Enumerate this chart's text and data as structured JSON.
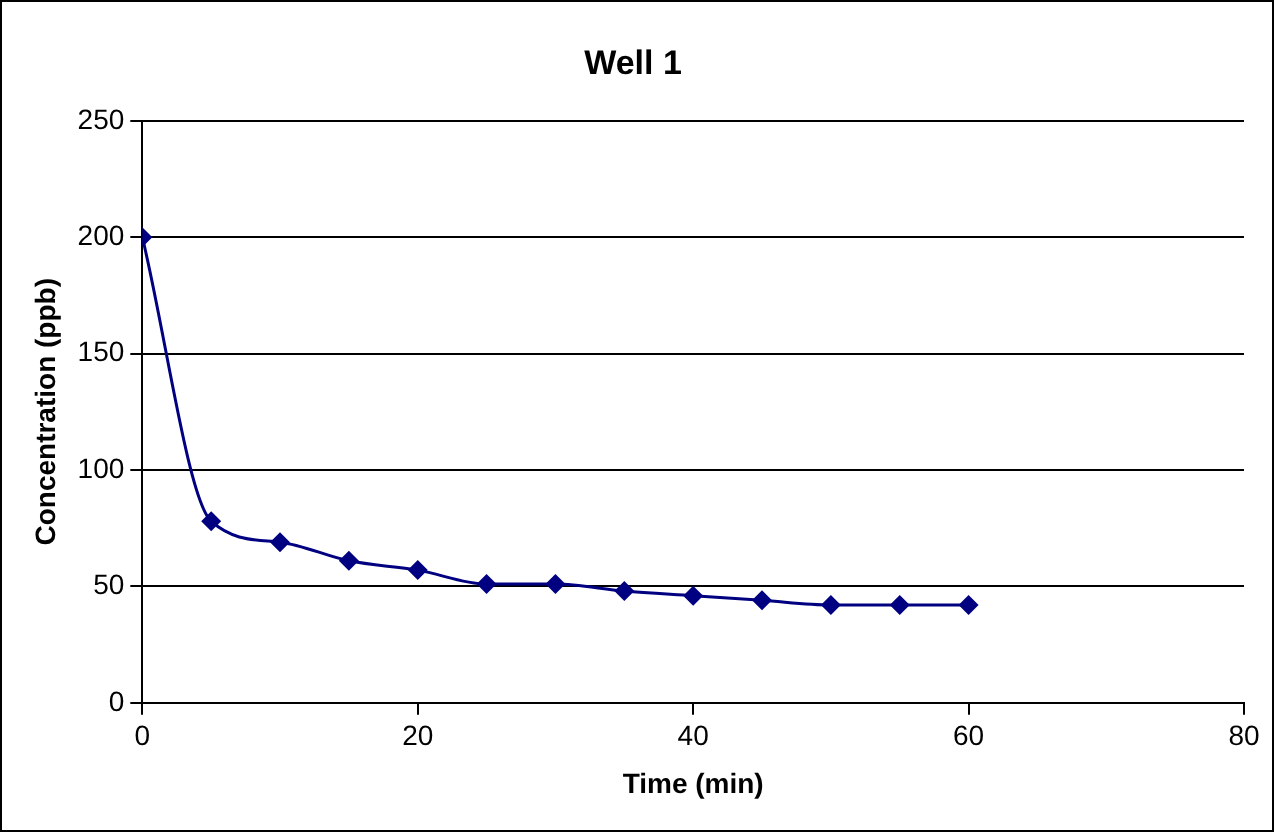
{
  "chart_data": {
    "type": "line",
    "title": "Well 1",
    "xlabel": "Time (min)",
    "ylabel": "Concentration (ppb)",
    "x": [
      0,
      5,
      10,
      15,
      20,
      25,
      30,
      35,
      40,
      45,
      50,
      55,
      60
    ],
    "series": [
      {
        "color": "#000080",
        "values": [
          200,
          78,
          69,
          61,
          57,
          51,
          51,
          48,
          46,
          44,
          42,
          42,
          42
        ]
      }
    ],
    "xlim": [
      0,
      80
    ],
    "xticks": [
      0,
      20,
      40,
      60,
      80
    ],
    "ylim": [
      0,
      250
    ],
    "yticks": [
      0,
      50,
      100,
      150,
      200,
      250
    ],
    "grid": "y",
    "legend": false,
    "marker": "diamond",
    "line_style": "solid"
  }
}
